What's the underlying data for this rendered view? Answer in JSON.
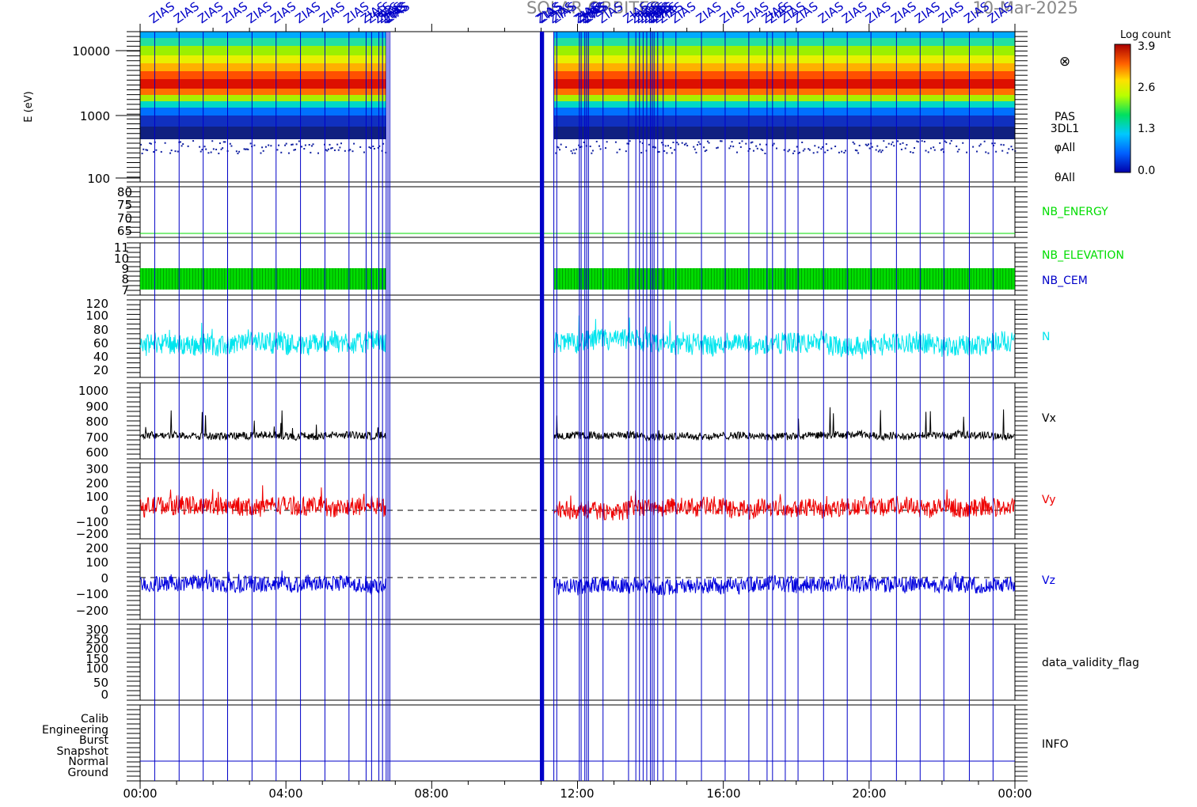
{
  "header": {
    "title": "SOLAR ORBITER",
    "date": "10-Mar-2025",
    "overlay_label": "ZIAS"
  },
  "colorbar": {
    "label": "Log count",
    "ticks": [
      "3.9",
      "2.6",
      "1.3",
      "0.0"
    ]
  },
  "x_axis": {
    "ticks": [
      "00:00",
      "04:00",
      "08:00",
      "12:00",
      "16:00",
      "20:00",
      "00:00"
    ],
    "range_hours": [
      0,
      24
    ]
  },
  "gaps_hours": [
    [
      6.75,
      11.35
    ]
  ],
  "event_lines_hours": [
    0.4,
    1.07,
    1.73,
    2.4,
    3.07,
    3.73,
    4.4,
    5.07,
    5.73,
    6.2,
    6.35,
    6.55,
    6.65,
    6.75,
    6.8,
    6.85,
    11.0,
    11.05,
    11.35,
    11.43,
    12.05,
    12.1,
    12.2,
    12.25,
    12.3,
    12.7,
    13.4,
    13.6,
    13.7,
    13.8,
    13.9,
    14.0,
    14.05,
    14.1,
    14.2,
    14.35,
    14.7,
    15.4,
    16.05,
    16.7,
    17.2,
    17.35,
    17.7,
    18.05,
    18.75,
    19.4,
    20.05,
    20.75,
    21.4,
    22.05,
    22.75,
    23.4
  ],
  "panels": {
    "spectrogram": {
      "ylabel": "E (eV)",
      "ticks": [
        "10000",
        "1000",
        "100"
      ],
      "labels": [
        "PAS",
        "3DL1",
        "φAll",
        "θAll"
      ],
      "peak_energy_eV": 2500
    },
    "nb_energy": {
      "ticks": [
        "80",
        "75",
        "70",
        "65"
      ],
      "label": "NB_ENERGY",
      "value": 64
    },
    "nb_elevation": {
      "ticks": [
        "11",
        "10",
        "9",
        "8",
        "7"
      ],
      "labels": [
        "NB_ELEVATION",
        "NB_CEM"
      ],
      "band": [
        7,
        9
      ]
    },
    "density": {
      "ticks": [
        "120",
        "100",
        "80",
        "60",
        "40",
        "20"
      ],
      "label": "N",
      "mean": 60
    },
    "vx": {
      "ticks": [
        "1000",
        "900",
        "800",
        "700",
        "600"
      ],
      "label": "Vx",
      "mean": 720
    },
    "vy": {
      "ticks": [
        "300",
        "200",
        "100",
        "0",
        "−100",
        "−200"
      ],
      "label": "Vy",
      "mean": 0
    },
    "vz": {
      "ticks": [
        "200",
        "100",
        "0",
        "−100",
        "−200"
      ],
      "label": "Vz",
      "mean": -20
    },
    "validity": {
      "ticks": [
        "300",
        "250",
        "200",
        "150",
        "100",
        "50",
        "0"
      ],
      "label": "data_validity_flag"
    },
    "info": {
      "ticks": [
        "Calib",
        "Engineering",
        "Burst",
        "Snapshot",
        "Normal",
        "Ground"
      ],
      "label": "INFO",
      "mode": "Normal"
    }
  },
  "colors": {
    "event_line": "#0000c8",
    "nb_green": "#00dd00",
    "nb_cem_blue": "#0000c8",
    "density": "#00e5ee",
    "vx": "#000000",
    "vy": "#ee0000",
    "vz": "#0000dd",
    "title_gray": "#888888"
  },
  "chart_data": {
    "type": "line",
    "title": "SOLAR ORBITER",
    "x_range_hours": [
      0,
      24
    ],
    "series": [
      {
        "name": "N",
        "values_summary": {
          "min": 25,
          "max": 105,
          "typical": 60
        }
      },
      {
        "name": "Vx",
        "values_summary": {
          "min": 660,
          "max": 990,
          "typical": 720
        }
      },
      {
        "name": "Vy",
        "values_summary": {
          "min": -200,
          "max": 250,
          "typical": 0
        }
      },
      {
        "name": "Vz",
        "values_summary": {
          "min": -180,
          "max": 170,
          "typical": -20
        }
      },
      {
        "name": "NB_ENERGY",
        "values_summary": {
          "value": 64
        }
      }
    ]
  }
}
